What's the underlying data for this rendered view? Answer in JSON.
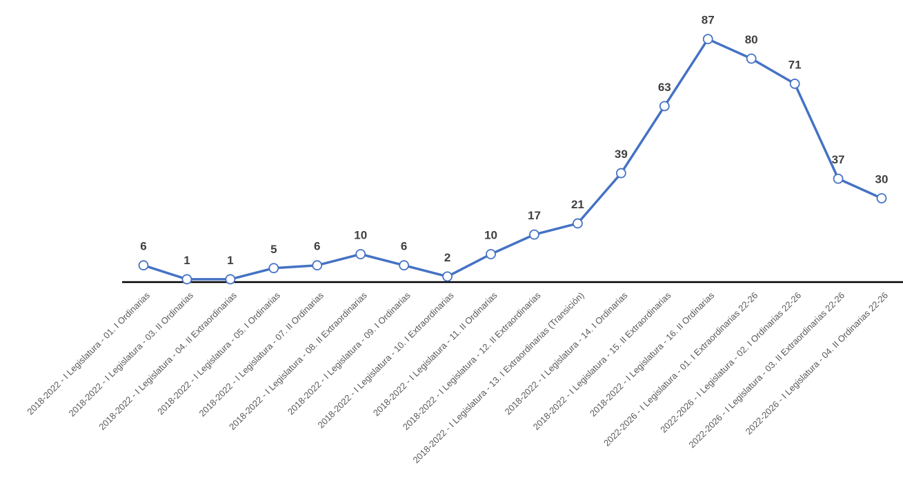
{
  "chart_data": {
    "type": "line",
    "title": "",
    "xlabel": "",
    "ylabel": "",
    "ylim": [
      0,
      90
    ],
    "grid": false,
    "legend": "none",
    "categories": [
      "2018-2022 - I Legislatura - 01. I Ordinarias",
      "2018-2022 - I Legislatura - 03. II Ordinarias",
      "2018-2022 - I Legislatura - 04. II Extraordinarias",
      "2018-2022 - I Legislatura - 05. I Ordinarias",
      "2018-2022 - I Legislatura - 07. II Ordinarias",
      "2018-2022 - I Legislatura - 08. II Extraordinarias",
      "2018-2022 - I Legislatura - 09. I Ordinarias",
      "2018-2022 - I Legislatura - 10. I Extraordinarias",
      "2018-2022 - I Legislatura - 11. II Ordinarias",
      "2018-2022 - I Legislatura - 12. II Extraordinarias",
      "2018-2022 - I Legislatura - 13. I Extraordinarias (Transición)",
      "2018-2022 - I Legislatura - 14. I Ordinarias",
      "2018-2022 - I Legislatura - 15. II Extraordinarias",
      "2018-2022 - I Legislatura - 16. II Ordinarias",
      "2022-2026 - I Legislatura - 01. I Extraordinarias 22-26",
      "2022-2026 - I Legislatura - 02. I Ordinarias 22-26",
      "2022-2026 - I Legislatura - 03. II Extraordinarias 22-26",
      "2022-2026 - I Legislatura - 04. II Ordinarias 22-26"
    ],
    "series": [
      {
        "values": [
          6,
          1,
          1,
          5,
          6,
          10,
          6,
          2,
          10,
          17,
          21,
          39,
          63,
          87,
          80,
          71,
          37,
          30
        ]
      }
    ],
    "colors": {
      "line": "#4472C4",
      "marker_fill": "#FFFFFF",
      "axis": "#000000",
      "data_label": "#404040",
      "tick_label": "#595959"
    }
  }
}
